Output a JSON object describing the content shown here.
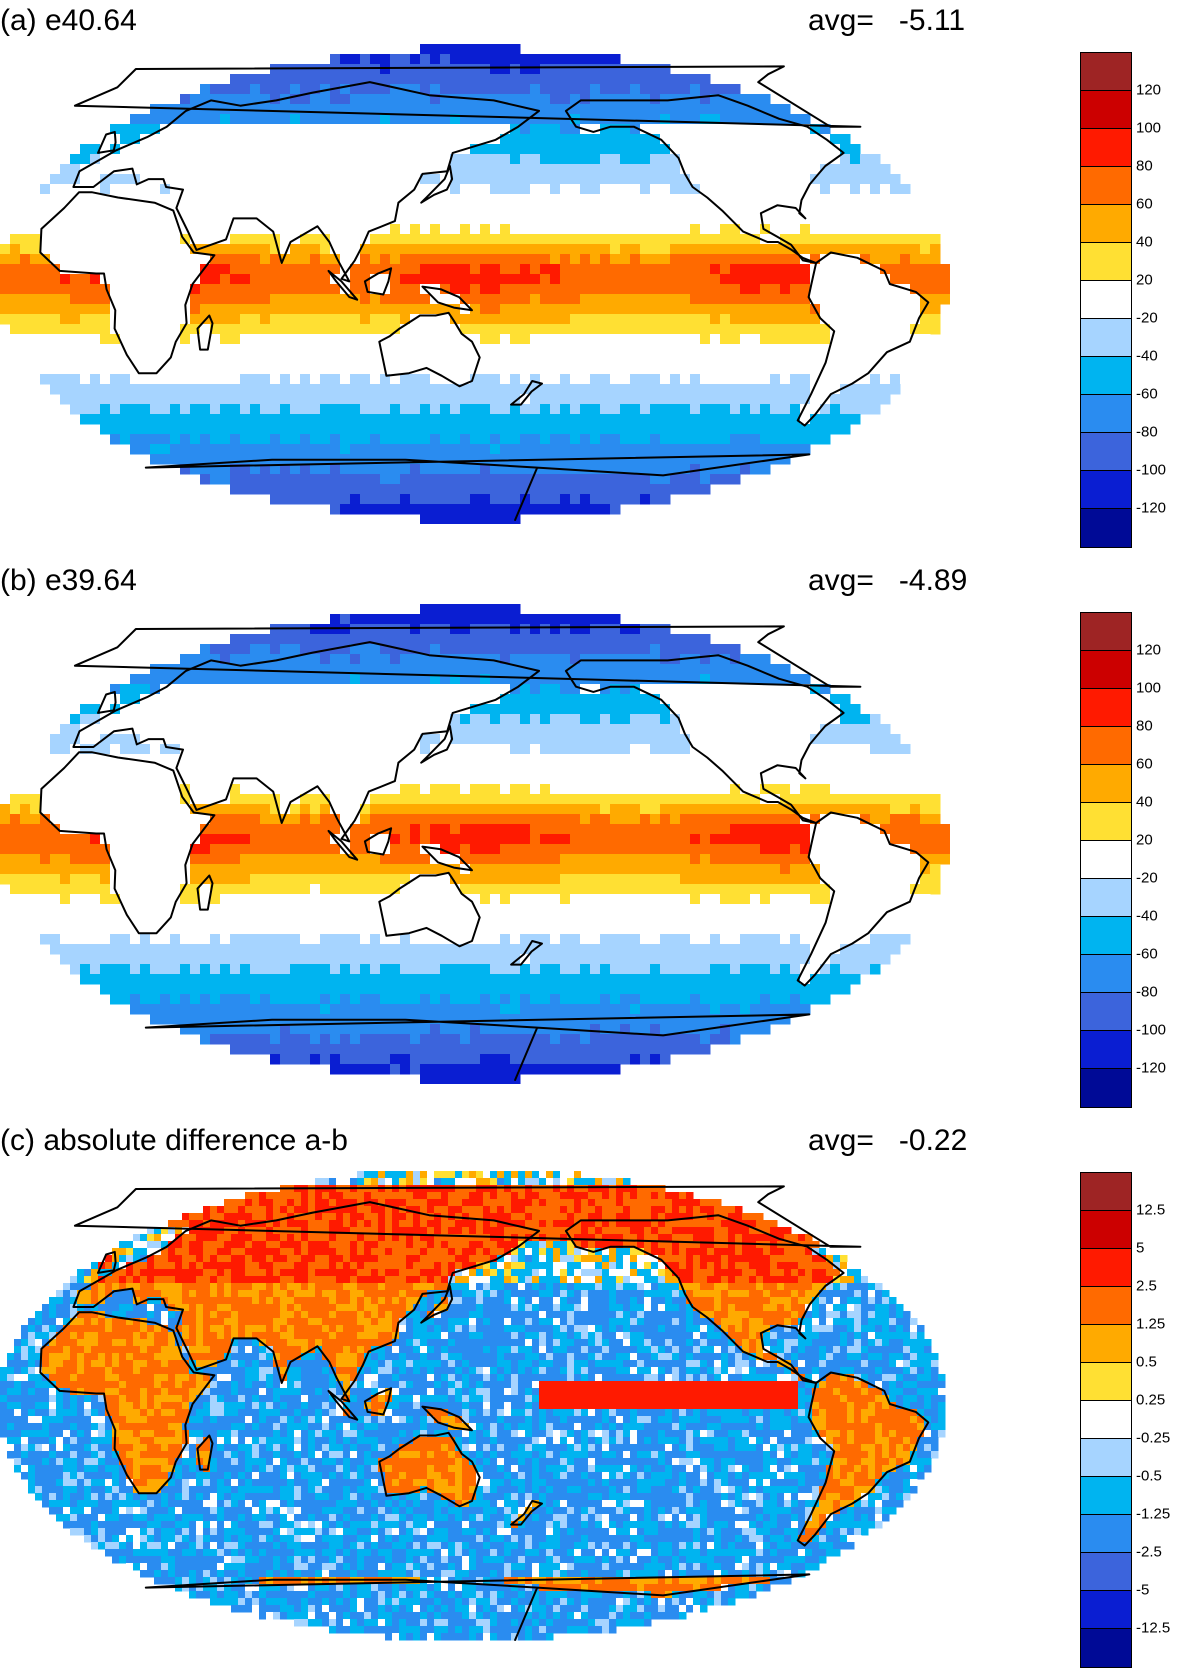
{
  "panels": [
    {
      "id": "a",
      "title": "(a) e40.64",
      "avg_label": "avg=",
      "avg_value": "-5.11",
      "colorbar_labels": [
        "120",
        "100",
        "80",
        "60",
        "40",
        "20",
        "-20",
        "-40",
        "-60",
        "-80",
        "-100",
        "-120"
      ]
    },
    {
      "id": "b",
      "title": "(b) e39.64",
      "avg_label": "avg=",
      "avg_value": "-4.89",
      "colorbar_labels": [
        "120",
        "100",
        "80",
        "60",
        "40",
        "20",
        "-20",
        "-40",
        "-60",
        "-80",
        "-100",
        "-120"
      ]
    },
    {
      "id": "c",
      "title": "(c) absolute difference a-b",
      "avg_label": "avg=",
      "avg_value": "-0.22",
      "colorbar_labels": [
        "12.5",
        "5",
        "2.5",
        "1.25",
        "0.5",
        "0.25",
        "-0.25",
        "-0.5",
        "-1.25",
        "-2.5",
        "-5",
        "-12.5"
      ]
    }
  ],
  "colormap": [
    "#9e2424",
    "#cc0000",
    "#ff1a00",
    "#ff6a00",
    "#ffaa00",
    "#ffe033",
    "#ffffff",
    "#a6d4ff",
    "#00b4f0",
    "#2a8cf0",
    "#3c64dc",
    "#0a1ed2",
    "#000a96"
  ]
}
